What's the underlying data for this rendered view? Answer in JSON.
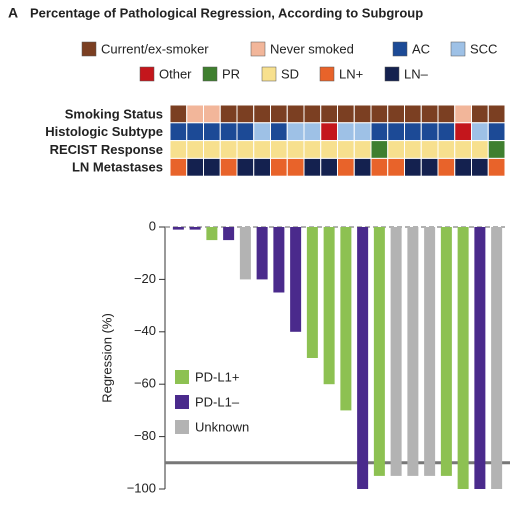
{
  "panel_label": "A",
  "title": "Percentage of Pathological Regression, According to Subgroup",
  "chart_data": [
    {
      "type": "heatmap",
      "legend": [
        {
          "name": "Current/ex-smoker",
          "color": "#7b3f22"
        },
        {
          "name": "Never smoked",
          "color": "#f2b69a"
        },
        {
          "name": "AC",
          "color": "#1c4a96"
        },
        {
          "name": "SCC",
          "color": "#9ec1e6"
        },
        {
          "name": "Other",
          "color": "#c4161c"
        },
        {
          "name": "PR",
          "color": "#3f7f2f"
        },
        {
          "name": "SD",
          "color": "#f7e08e"
        },
        {
          "name": "LN+",
          "color": "#e8632a"
        },
        {
          "name": "LN–",
          "color": "#14214f"
        }
      ],
      "rows": [
        {
          "label": "Smoking Status",
          "cells": [
            "Current/ex-smoker",
            "Never smoked",
            "Never smoked",
            "Current/ex-smoker",
            "Current/ex-smoker",
            "Current/ex-smoker",
            "Current/ex-smoker",
            "Current/ex-smoker",
            "Current/ex-smoker",
            "Current/ex-smoker",
            "Current/ex-smoker",
            "Current/ex-smoker",
            "Current/ex-smoker",
            "Current/ex-smoker",
            "Current/ex-smoker",
            "Current/ex-smoker",
            "Current/ex-smoker",
            "Never smoked",
            "Current/ex-smoker",
            "Current/ex-smoker"
          ]
        },
        {
          "label": "Histologic Subtype",
          "cells": [
            "AC",
            "AC",
            "AC",
            "AC",
            "AC",
            "SCC",
            "AC",
            "SCC",
            "SCC",
            "Other",
            "SCC",
            "SCC",
            "AC",
            "AC",
            "AC",
            "AC",
            "AC",
            "Other",
            "SCC",
            "AC"
          ]
        },
        {
          "label": "RECIST Response",
          "cells": [
            "SD",
            "SD",
            "SD",
            "SD",
            "SD",
            "SD",
            "SD",
            "SD",
            "SD",
            "SD",
            "SD",
            "SD",
            "PR",
            "SD",
            "SD",
            "SD",
            "SD",
            "SD",
            "SD",
            "PR"
          ]
        },
        {
          "label": "LN Metastases",
          "cells": [
            "LN+",
            "LN–",
            "LN–",
            "LN+",
            "LN–",
            "LN–",
            "LN+",
            "LN+",
            "LN–",
            "LN–",
            "LN+",
            "LN–",
            "LN+",
            "LN+",
            "LN–",
            "LN–",
            "LN+",
            "LN–",
            "LN–",
            "LN+"
          ]
        }
      ]
    },
    {
      "type": "bar",
      "ylabel": "Regression (%)",
      "categories": [
        null,
        null,
        null,
        null,
        null,
        null,
        null,
        null,
        null,
        null,
        null,
        null,
        null,
        null,
        null,
        null,
        null,
        null,
        null,
        null
      ],
      "values": [
        -1,
        -1,
        -5,
        -5,
        -20,
        -20,
        -25,
        -40,
        -50,
        -60,
        -70,
        -100,
        -95,
        -95,
        -95,
        -95,
        -95,
        -100,
        -100,
        -100
      ],
      "groups": [
        "PD-L1–",
        "PD-L1–",
        "PD-L1+",
        "PD-L1–",
        "Unknown",
        "PD-L1–",
        "PD-L1–",
        "PD-L1–",
        "PD-L1+",
        "PD-L1+",
        "PD-L1+",
        "PD-L1–",
        "PD-L1+",
        "Unknown",
        "Unknown",
        "Unknown",
        "PD-L1+",
        "PD-L1+",
        "PD-L1–",
        "Unknown"
      ],
      "series": [
        {
          "name": "PD-L1+",
          "color": "#8dc152"
        },
        {
          "name": "PD-L1–",
          "color": "#4a2a8c"
        },
        {
          "name": "Unknown",
          "color": "#b3b3b3"
        }
      ],
      "ylim": [
        -100,
        0
      ],
      "yticks": [
        {
          "value": -100,
          "label": "−100"
        },
        {
          "value": -80,
          "label": "−80"
        },
        {
          "value": -60,
          "label": "−60"
        },
        {
          "value": -40,
          "label": "−40"
        },
        {
          "value": -20,
          "label": "−20"
        },
        0
      ],
      "reference_line": -90
    }
  ]
}
